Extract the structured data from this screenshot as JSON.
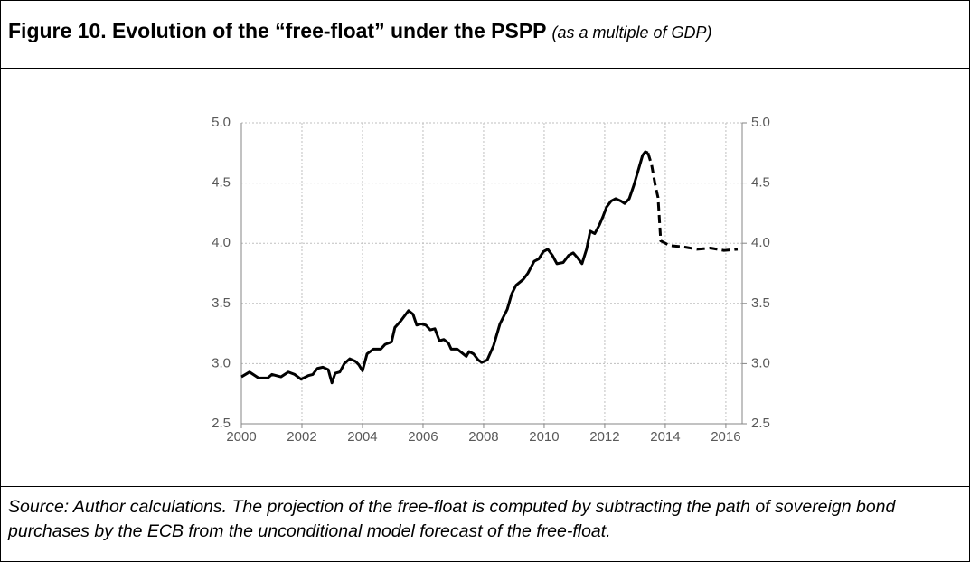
{
  "header": {
    "title": "Figure 10. Evolution of the “free-float” under the PSPP",
    "subtitle": "(as a multiple of GDP)"
  },
  "chart_data": {
    "type": "line",
    "x": [
      2000.0,
      2000.27,
      2000.57,
      2000.87,
      2001.01,
      2001.31,
      2001.55,
      2001.76,
      2001.97,
      2002.21,
      2002.36,
      2002.51,
      2002.69,
      2002.87,
      2002.99,
      2003.1,
      2003.25,
      2003.4,
      2003.58,
      2003.76,
      2003.88,
      2004.0,
      2004.15,
      2004.36,
      2004.6,
      2004.75,
      2004.96,
      2005.07,
      2005.25,
      2005.4,
      2005.52,
      2005.67,
      2005.79,
      2005.94,
      2006.09,
      2006.24,
      2006.39,
      2006.54,
      2006.69,
      2006.84,
      2006.93,
      2007.13,
      2007.28,
      2007.43,
      2007.52,
      2007.67,
      2007.82,
      2007.94,
      2008.12,
      2008.33,
      2008.54,
      2008.78,
      2008.93,
      2009.07,
      2009.31,
      2009.46,
      2009.67,
      2009.82,
      2009.97,
      2010.12,
      2010.27,
      2010.42,
      2010.63,
      2010.81,
      2010.96,
      2011.1,
      2011.25,
      2011.4,
      2011.52,
      2011.67,
      2011.82,
      2011.94,
      2012.06,
      2012.21,
      2012.36,
      2012.54,
      2012.66,
      2012.81,
      2012.96,
      2013.1,
      2013.25,
      2013.34,
      2013.43,
      2013.55,
      2013.67,
      2013.76,
      2013.85,
      2014.15,
      2014.6,
      2015.04,
      2015.49,
      2015.94,
      2016.39
    ],
    "series": [
      {
        "color": "#000000",
        "style": "solid",
        "values": [
          2.89,
          2.93,
          2.88,
          2.88,
          2.91,
          2.89,
          2.93,
          2.91,
          2.87,
          2.9,
          2.91,
          2.96,
          2.97,
          2.95,
          2.84,
          2.92,
          2.93,
          3.0,
          3.04,
          3.02,
          2.99,
          2.94,
          3.08,
          3.12,
          3.12,
          3.16,
          3.18,
          3.3,
          3.35,
          3.4,
          3.44,
          3.41,
          3.32,
          3.33,
          3.32,
          3.28,
          3.29,
          3.19,
          3.2,
          3.17,
          3.12,
          3.12,
          3.09,
          3.06,
          3.1,
          3.08,
          3.03,
          3.01,
          3.03,
          3.15,
          3.33,
          3.45,
          3.58,
          3.65,
          3.7,
          3.75,
          3.85,
          3.87,
          3.93,
          3.95,
          3.9,
          3.83,
          3.84,
          3.9,
          3.92,
          3.88,
          3.83,
          3.95,
          4.1,
          4.08,
          4.15,
          4.22,
          4.3,
          4.35,
          4.37,
          4.35,
          4.33,
          4.37,
          4.48,
          4.6,
          4.73,
          4.76,
          4.75,
          null,
          null,
          null,
          null,
          null,
          null,
          null,
          null,
          null,
          null
        ]
      },
      {
        "color": "#000000",
        "style": "dashed",
        "values": [
          null,
          null,
          null,
          null,
          null,
          null,
          null,
          null,
          null,
          null,
          null,
          null,
          null,
          null,
          null,
          null,
          null,
          null,
          null,
          null,
          null,
          null,
          null,
          null,
          null,
          null,
          null,
          null,
          null,
          null,
          null,
          null,
          null,
          null,
          null,
          null,
          null,
          null,
          null,
          null,
          null,
          null,
          null,
          null,
          null,
          null,
          null,
          null,
          null,
          null,
          null,
          null,
          null,
          null,
          null,
          null,
          null,
          null,
          null,
          null,
          null,
          null,
          null,
          null,
          null,
          null,
          null,
          null,
          null,
          null,
          null,
          null,
          null,
          null,
          null,
          null,
          null,
          null,
          null,
          null,
          null,
          null,
          4.75,
          4.65,
          4.48,
          4.38,
          4.02,
          3.98,
          3.97,
          3.95,
          3.96,
          3.94,
          3.95
        ]
      }
    ],
    "xlim": [
      2000,
      2016.54
    ],
    "xticks": [
      2000,
      2002,
      2004,
      2006,
      2008,
      2010,
      2012,
      2014,
      2016
    ],
    "ylim": [
      2.5,
      5
    ],
    "yticks": [
      2.5,
      {
        "value": 3,
        "label": "3.0"
      },
      3.5,
      {
        "value": 4,
        "label": "4.0"
      },
      4.5,
      {
        "value": 5,
        "label": "5.0"
      }
    ],
    "y2lim": [
      2.5,
      5
    ],
    "y2ticks": [
      2.5,
      {
        "value": 3,
        "label": "3.0"
      },
      3.5,
      {
        "value": 4,
        "label": "4.0"
      },
      4.5,
      {
        "value": 5,
        "label": "5.0"
      }
    ],
    "grid": true
  },
  "footer": {
    "source": "Source: Author calculations. The projection of the free-float is computed by subtracting the path of sovereign bond purchases by the ECB from the unconditional model forecast of the free-float."
  }
}
